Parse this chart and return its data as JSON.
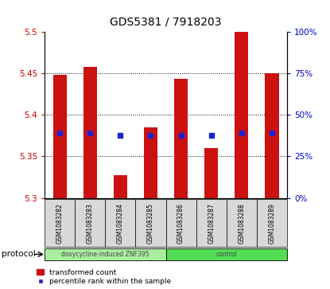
{
  "title": "GDS5381 / 7918203",
  "samples": [
    "GSM1083282",
    "GSM1083283",
    "GSM1083284",
    "GSM1083285",
    "GSM1083286",
    "GSM1083287",
    "GSM1083288",
    "GSM1083289"
  ],
  "bar_tops": [
    5.448,
    5.458,
    5.327,
    5.385,
    5.443,
    5.36,
    5.5,
    5.45
  ],
  "bar_base": 5.3,
  "percentile_values": [
    5.378,
    5.378,
    5.375,
    5.375,
    5.375,
    5.375,
    5.378,
    5.378
  ],
  "ylim": [
    5.3,
    5.5
  ],
  "yticks_left": [
    5.3,
    5.35,
    5.4,
    5.45,
    5.5
  ],
  "yticks_right": [
    0,
    25,
    50,
    75,
    100
  ],
  "bar_color": "#cc1111",
  "percentile_color": "#2222cc",
  "groups": [
    {
      "label": "doxycycline-induced ZNF395",
      "n_samples": 4,
      "color": "#aaeea0"
    },
    {
      "label": "control",
      "n_samples": 4,
      "color": "#55dd55"
    }
  ],
  "protocol_label": "protocol",
  "bar_width": 0.45,
  "background_color": "#ffffff",
  "ticklabel_color_left": "#cc0000",
  "ticklabel_color_right": "#0000cc",
  "sample_box_color": "#d8d8d8",
  "legend_items": [
    {
      "color": "#cc1111",
      "label": "transformed count",
      "marker": "s"
    },
    {
      "color": "#2222cc",
      "label": "percentile rank within the sample",
      "marker": "s"
    }
  ]
}
